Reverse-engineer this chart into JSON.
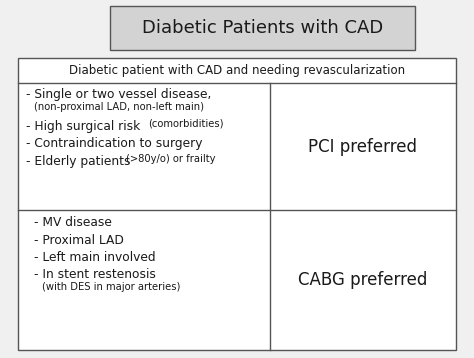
{
  "title": "Diabetic Patients with CAD",
  "header": "Diabetic patient with CAD and needing revascularization",
  "row1_right": "PCI preferred",
  "row2_right": "CABG preferred",
  "bg_color": "#f0f0f0",
  "title_box_color": "#d3d3d3",
  "table_bg_color": "#ffffff",
  "border_color": "#555555",
  "text_color": "#1a1a1a",
  "title_fontsize": 13,
  "header_fontsize": 8.5,
  "body_fontsize": 8.8,
  "small_fontsize": 7.2,
  "preferred_fontsize": 12
}
